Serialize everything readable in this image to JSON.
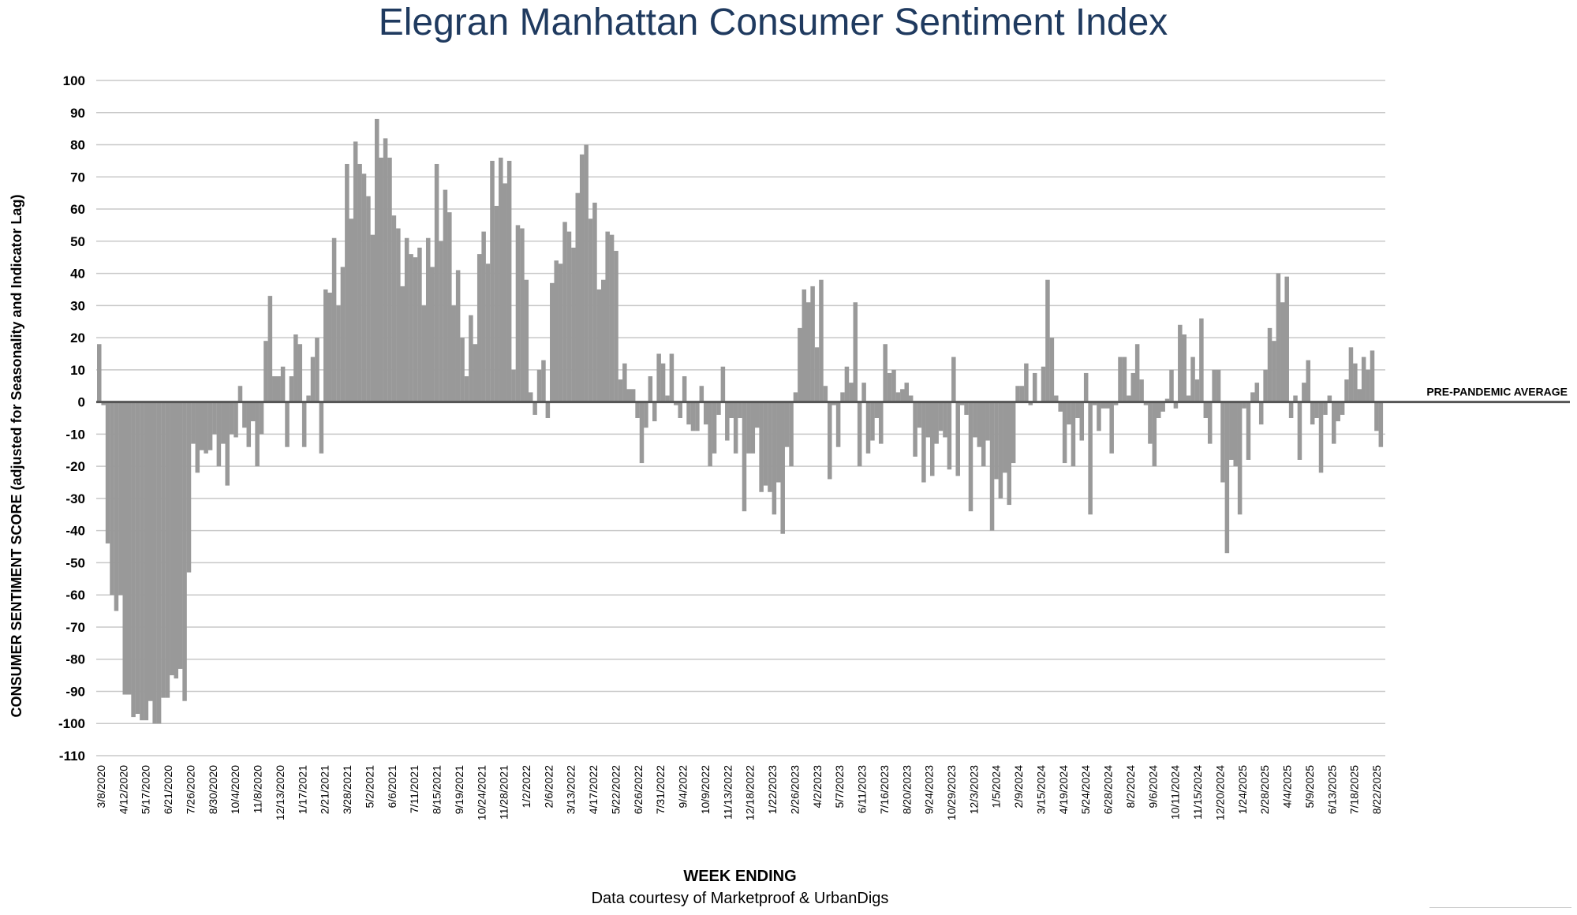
{
  "title": {
    "brand": "Elegran",
    "rest": "Manhattan Consumer Sentiment Index"
  },
  "footer": {
    "xlabel": "WEEK ENDING",
    "credit": "Data courtesy of Marketproof & UrbanDigs"
  },
  "colors": {
    "bar": "#999999",
    "grid": "#c8c8c8",
    "zero_line": "#555555",
    "title": "#1f3a5f"
  },
  "chart_data": {
    "type": "bar",
    "ylabel": "CONSUMER SENTIMENT SCORE (adjusted for Seasonality and Indicator Lag)",
    "xlabel": "WEEK ENDING",
    "ylim": [
      -110,
      100
    ],
    "yticks": [
      100,
      90,
      80,
      70,
      60,
      50,
      40,
      30,
      20,
      10,
      0,
      -10,
      -20,
      -30,
      -40,
      -50,
      -60,
      -70,
      -80,
      -90,
      -100,
      -110
    ],
    "grid": true,
    "reference_line": {
      "value": 0,
      "label": "PRE-PANDEMIC  AVERAGE"
    },
    "x_tick_labels": [
      "3/8/2020",
      "4/12/2020",
      "5/17/2020",
      "6/21/2020",
      "7/26/2020",
      "8/30/2020",
      "10/4/2020",
      "11/8/2020",
      "12/13/2020",
      "1/17/2021",
      "2/21/2021",
      "3/28/2021",
      "5/2/2021",
      "6/6/2021",
      "7/11/2021",
      "8/15/2021",
      "9/19/2021",
      "10/24/2021",
      "11/28/2021",
      "1/2/2022",
      "2/6/2022",
      "3/13/2022",
      "4/17/2022",
      "5/22/2022",
      "6/26/2022",
      "7/31/2022",
      "9/4/2022",
      "10/9/2022",
      "11/13/2022",
      "12/18/2022",
      "1/22/2023",
      "2/26/2023",
      "4/2/2023",
      "5/7/2023",
      "6/11/2023",
      "7/16/2023",
      "8/20/2023",
      "9/24/2023",
      "10/29/2023",
      "12/3/2023",
      "1/5/2024",
      "2/9/2024",
      "3/15/2024",
      "4/19/2024",
      "5/24/2024",
      "6/28/2024",
      "8/2/2024",
      "9/6/2024",
      "10/11/2024",
      "11/15/2024",
      "12/20/2024",
      "1/24/2025",
      "2/28/2025",
      "4/4/2025",
      "5/9/2025",
      "6/13/2025",
      "7/18/2025",
      "8/22/2025"
    ],
    "values": [
      18,
      -1,
      -44,
      -60,
      -65,
      -60,
      -91,
      -91,
      -98,
      -97,
      -99,
      -99,
      -93,
      -100,
      -100,
      -92,
      -92,
      -85,
      -86,
      -83,
      -93,
      -53,
      -13,
      -22,
      -15,
      -16,
      -15,
      -10,
      -20,
      -13,
      -26,
      -10,
      -11,
      5,
      -8,
      -14,
      -6,
      -20,
      -10,
      19,
      33,
      8,
      8,
      11,
      -14,
      8,
      21,
      18,
      -14,
      2,
      14,
      20,
      -16,
      35,
      34,
      51,
      30,
      42,
      74,
      57,
      81,
      74,
      71,
      64,
      52,
      88,
      76,
      82,
      76,
      58,
      54,
      36,
      51,
      46,
      45,
      48,
      30,
      51,
      42,
      74,
      50,
      66,
      59,
      30,
      41,
      20,
      8,
      27,
      18,
      46,
      53,
      43,
      75,
      61,
      76,
      68,
      75,
      10,
      55,
      54,
      38,
      3,
      -4,
      10,
      13,
      -5,
      37,
      44,
      43,
      56,
      53,
      48,
      65,
      77,
      80,
      57,
      62,
      35,
      38,
      53,
      52,
      47,
      7,
      12,
      4,
      4,
      -5,
      -19,
      -8,
      8,
      -6,
      15,
      12,
      2,
      15,
      -1,
      -5,
      8,
      -7,
      -9,
      -9,
      5,
      -7,
      -20,
      -16,
      -4,
      11,
      -12,
      -5,
      -16,
      -5,
      -34,
      -16,
      -16,
      -8,
      -28,
      -26,
      -28,
      -35,
      -25,
      -41,
      -14,
      -20,
      3,
      23,
      35,
      31,
      36,
      17,
      38,
      5,
      -24,
      -1,
      -14,
      3,
      11,
      6,
      31,
      -20,
      6,
      -16,
      -12,
      -5,
      -13,
      18,
      9,
      10,
      3,
      4,
      6,
      2,
      -17,
      -8,
      -25,
      -11,
      -23,
      -13,
      -9,
      -11,
      -21,
      14,
      -23,
      -1,
      -4,
      -34,
      -11,
      -14,
      -20,
      -12,
      -40,
      -24,
      -30,
      -22,
      -32,
      -19,
      5,
      5,
      12,
      -1,
      9,
      0,
      11,
      38,
      20,
      2,
      -3,
      -19,
      -7,
      -20,
      -5,
      -12,
      9,
      -35,
      -1,
      -9,
      -2,
      -2,
      -16,
      -1,
      14,
      14,
      2,
      9,
      18,
      7,
      -1,
      -13,
      -20,
      -5,
      -3,
      1,
      10,
      -2,
      24,
      21,
      2,
      14,
      7,
      26,
      -5,
      -13,
      10,
      10,
      -25,
      -47,
      -18,
      -20,
      -35,
      -2,
      -18,
      3,
      6,
      -7,
      10,
      23,
      19,
      40,
      31,
      39,
      -5,
      2,
      -18,
      6,
      13,
      -7,
      -5,
      -22,
      -4,
      2,
      -13,
      -6,
      -4,
      7,
      17,
      12,
      4,
      14,
      10,
      16,
      -9,
      -14
    ]
  }
}
